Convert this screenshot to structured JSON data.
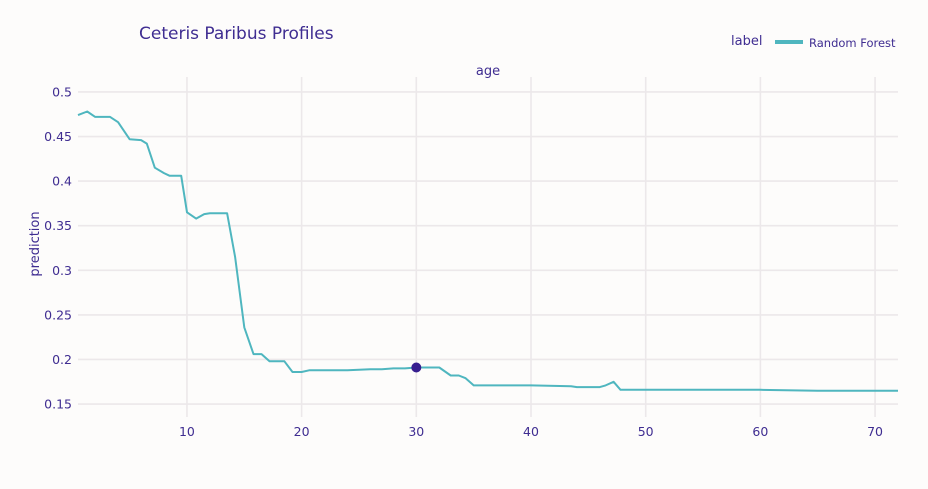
{
  "chart_data": {
    "type": "line",
    "title": "Ceteris Paribus Profiles",
    "facet_label": "age",
    "xlabel": "",
    "ylabel": "prediction",
    "xlim": [
      0.5,
      72
    ],
    "ylim": [
      0.14,
      0.51
    ],
    "x_ticks": [
      10,
      20,
      30,
      40,
      50,
      60,
      70
    ],
    "y_ticks": [
      0.15,
      0.2,
      0.25,
      0.3,
      0.35,
      0.4,
      0.45,
      0.5
    ],
    "x_tick_labels": [
      "10",
      "20",
      "30",
      "40",
      "50",
      "60",
      "70"
    ],
    "y_tick_labels": [
      "0.15",
      "0.2",
      "0.25",
      "0.3",
      "0.35",
      "0.4",
      "0.45",
      "0.5"
    ],
    "grid": true,
    "legend": {
      "title": "label",
      "position": "top-right"
    },
    "series": [
      {
        "name": "Random Forest",
        "color": "#4fb6bf",
        "x": [
          0.5,
          1.3,
          2.0,
          3.3,
          4.0,
          5.0,
          6.0,
          6.5,
          7.2,
          8.0,
          8.5,
          9.5,
          10.0,
          10.8,
          11.5,
          12.0,
          13.0,
          13.5,
          14.2,
          15.0,
          15.8,
          16.5,
          17.2,
          18.0,
          18.5,
          19.2,
          20.0,
          20.7,
          22.0,
          24.0,
          26.0,
          27.0,
          28.0,
          29.0,
          30.0,
          31.0,
          32.0,
          33.0,
          33.7,
          34.3,
          35.0,
          38.0,
          40.0,
          43.5,
          44.0,
          45.0,
          46.0,
          46.5,
          47.2,
          47.8,
          50.0,
          55.0,
          60.0,
          65.0,
          70.0,
          72.0
        ],
        "y": [
          0.474,
          0.478,
          0.472,
          0.472,
          0.466,
          0.447,
          0.446,
          0.442,
          0.415,
          0.409,
          0.406,
          0.406,
          0.365,
          0.358,
          0.363,
          0.364,
          0.364,
          0.364,
          0.315,
          0.236,
          0.206,
          0.206,
          0.198,
          0.198,
          0.198,
          0.186,
          0.186,
          0.188,
          0.188,
          0.188,
          0.189,
          0.189,
          0.19,
          0.19,
          0.191,
          0.191,
          0.191,
          0.182,
          0.182,
          0.179,
          0.171,
          0.171,
          0.171,
          0.17,
          0.169,
          0.169,
          0.169,
          0.171,
          0.175,
          0.166,
          0.166,
          0.166,
          0.166,
          0.165,
          0.165,
          0.165
        ]
      }
    ],
    "observation": {
      "x": 30,
      "y": 0.191,
      "color": "#371e8f"
    }
  }
}
